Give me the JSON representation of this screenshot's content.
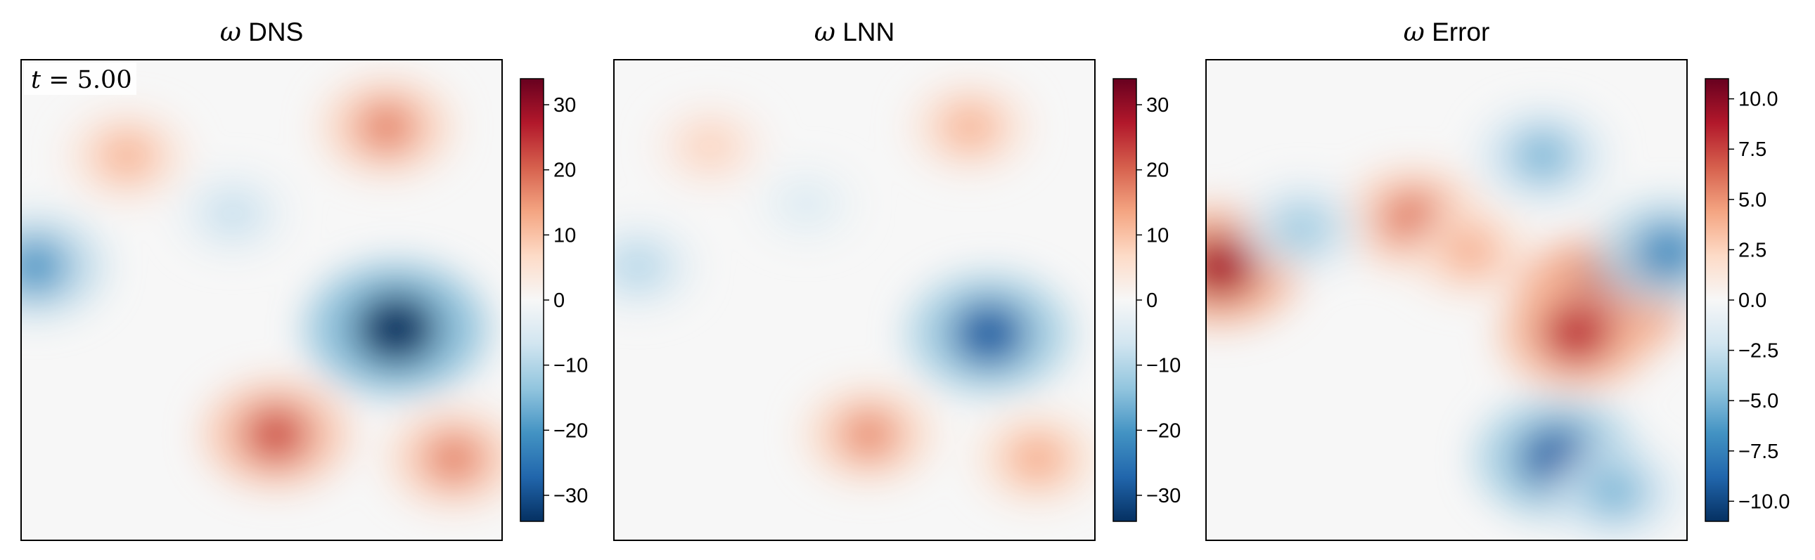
{
  "chart_data": [
    {
      "type": "heatmap",
      "title_symbol": "ω",
      "title": "DNS",
      "annotation": {
        "var": "t",
        "text": " = 5.00"
      },
      "colormap": "RdBu_r",
      "colors": {
        "neg": "#053061",
        "mid": "#f7f7f7",
        "pos": "#67001f"
      },
      "clim": [
        -34,
        34
      ],
      "colorbar_ticks": [
        30,
        20,
        10,
        0,
        -10,
        -20,
        -30
      ],
      "colorbar_tick_labels": [
        "30",
        "20",
        "10",
        "0",
        "−10",
        "−20",
        "−30"
      ],
      "features": [
        {
          "x": 0.78,
          "y": 0.56,
          "value": -34
        },
        {
          "x": 0.76,
          "y": 0.14,
          "value": 17
        },
        {
          "x": 0.53,
          "y": 0.78,
          "value": 22
        },
        {
          "x": 0.9,
          "y": 0.83,
          "value": 17
        },
        {
          "x": 0.22,
          "y": 0.2,
          "value": 12
        },
        {
          "x": 0.03,
          "y": 0.43,
          "value": -20
        },
        {
          "x": 0.44,
          "y": 0.32,
          "value": -8
        }
      ]
    },
    {
      "type": "heatmap",
      "title_symbol": "ω",
      "title": "LNN",
      "colormap": "RdBu_r",
      "clim": [
        -34,
        34
      ],
      "colorbar_ticks": [
        30,
        20,
        10,
        0,
        -10,
        -20,
        -30
      ],
      "colorbar_tick_labels": [
        "30",
        "20",
        "10",
        "0",
        "−10",
        "−20",
        "−30"
      ],
      "features": [
        {
          "x": 0.78,
          "y": 0.57,
          "value": -28
        },
        {
          "x": 0.74,
          "y": 0.14,
          "value": 12
        },
        {
          "x": 0.53,
          "y": 0.78,
          "value": 16
        },
        {
          "x": 0.88,
          "y": 0.83,
          "value": 13
        },
        {
          "x": 0.2,
          "y": 0.18,
          "value": 8
        },
        {
          "x": 0.05,
          "y": 0.43,
          "value": -10
        },
        {
          "x": 0.4,
          "y": 0.3,
          "value": -5
        }
      ]
    },
    {
      "type": "heatmap",
      "title_symbol": "ω",
      "title": "Error",
      "colormap": "RdBu_r",
      "clim": [
        -11,
        11
      ],
      "colorbar_ticks": [
        10,
        7.5,
        5,
        2.5,
        0,
        -2.5,
        -5,
        -7.5,
        -10
      ],
      "colorbar_tick_labels": [
        "10.0",
        "7.5",
        "5.0",
        "2.5",
        "0.0",
        "−2.5",
        "−5.0",
        "−7.5",
        "−10.0"
      ],
      "features": [
        {
          "x": 0.82,
          "y": 0.5,
          "value": 10
        },
        {
          "x": 0.77,
          "y": 0.57,
          "value": 8
        },
        {
          "x": 0.73,
          "y": 0.83,
          "value": -9
        },
        {
          "x": 0.03,
          "y": 0.43,
          "value": 9
        },
        {
          "x": 0.96,
          "y": 0.4,
          "value": -7
        },
        {
          "x": 0.43,
          "y": 0.33,
          "value": 6
        },
        {
          "x": 0.7,
          "y": 0.2,
          "value": -5
        },
        {
          "x": 0.55,
          "y": 0.4,
          "value": 4
        },
        {
          "x": 0.2,
          "y": 0.35,
          "value": -4
        },
        {
          "x": 0.85,
          "y": 0.9,
          "value": -5
        }
      ]
    }
  ]
}
